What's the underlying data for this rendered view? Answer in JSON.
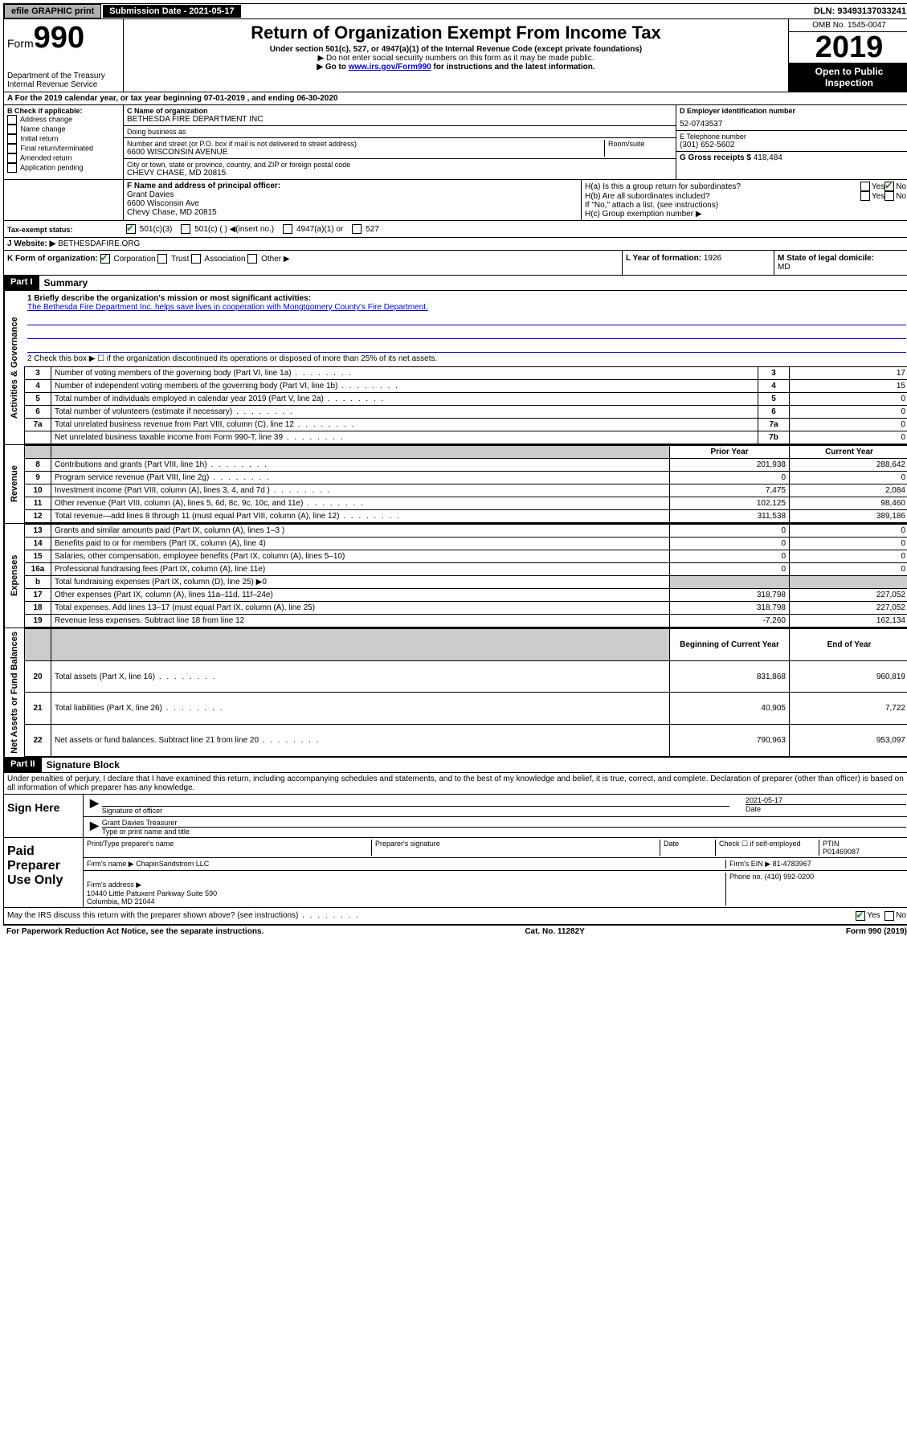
{
  "topbar": {
    "efile": "efile GRAPHIC print",
    "submission": "Submission Date - 2021-05-17",
    "dln": "DLN: 93493137033241"
  },
  "header": {
    "form_prefix": "Form",
    "form_number": "990",
    "dept": "Department of the Treasury\nInternal Revenue Service",
    "title": "Return of Organization Exempt From Income Tax",
    "subtitle": "Under section 501(c), 527, or 4947(a)(1) of the Internal Revenue Code (except private foundations)",
    "note1": "▶ Do not enter social security numbers on this form as it may be made public.",
    "note2_pre": "▶ Go to ",
    "note2_link": "www.irs.gov/Form990",
    "note2_post": " for instructions and the latest information.",
    "omb": "OMB No. 1545-0047",
    "year": "2019",
    "inspection": "Open to Public Inspection"
  },
  "period": "A  For the 2019 calendar year, or tax year beginning 07-01-2019    , and ending 06-30-2020",
  "boxB": {
    "title": "B Check if applicable:",
    "items": [
      "Address change",
      "Name change",
      "Initial return",
      "Final return/terminated",
      "Amended return",
      "Application pending"
    ]
  },
  "boxC": {
    "label_name": "C Name of organization",
    "name": "BETHESDA FIRE DEPARTMENT INC",
    "label_dba": "Doing business as",
    "label_addr": "Number and street (or P.O. box if mail is not delivered to street address)",
    "label_room": "Room/suite",
    "addr": "6600 WISCONSIN AVENUE",
    "label_city": "City or town, state or province, country, and ZIP or foreign postal code",
    "city": "CHEVY CHASE, MD  20815"
  },
  "boxD": {
    "label": "D Employer identification number",
    "value": "52-0743537"
  },
  "boxE": {
    "label": "E Telephone number",
    "value": "(301) 652-5602"
  },
  "boxG": {
    "label": "G Gross receipts $ ",
    "value": "418,484"
  },
  "boxF": {
    "label": "F  Name and address of principal officer:",
    "name": "Grant Davies",
    "addr1": "6600 Wisconsin Ave",
    "addr2": "Chevy Chase, MD  20815"
  },
  "boxH": {
    "a": "H(a)  Is this a group return for subordinates?",
    "b": "H(b)  Are all subordinates included?",
    "b_note": "If \"No,\" attach a list. (see instructions)",
    "c": "H(c)  Group exemption number ▶",
    "yes": "Yes",
    "no": "No"
  },
  "boxI": {
    "label": "Tax-exempt status:",
    "opts": [
      "501(c)(3)",
      "501(c) (  ) ◀(insert no.)",
      "4947(a)(1) or",
      "527"
    ]
  },
  "boxJ": {
    "label": "J   Website: ▶",
    "value": "BETHESDAFIRE.ORG"
  },
  "boxK": {
    "label": "K Form of organization:",
    "opts": [
      "Corporation",
      "Trust",
      "Association",
      "Other ▶"
    ]
  },
  "boxL": {
    "label": "L Year of formation: ",
    "value": "1926"
  },
  "boxM": {
    "label": "M State of legal domicile:",
    "value": "MD"
  },
  "part1": {
    "header": "Part I",
    "title": "Summary",
    "line1": "1  Briefly describe the organization's mission or most significant activities:",
    "mission": "The Bethesda Fire Department Inc. helps save lives in cooperation with Mongtgomery County's Fire Department.",
    "line2": "2   Check this box ▶ ☐  if the organization discontinued its operations or disposed of more than 25% of its net assets.",
    "vlabels": {
      "gov": "Activities & Governance",
      "rev": "Revenue",
      "exp": "Expenses",
      "net": "Net Assets or Fund Balances"
    },
    "gov_rows": [
      {
        "n": "3",
        "d": "Number of voting members of the governing body (Part VI, line 1a)",
        "box": "3",
        "v": "17"
      },
      {
        "n": "4",
        "d": "Number of independent voting members of the governing body (Part VI, line 1b)",
        "box": "4",
        "v": "15"
      },
      {
        "n": "5",
        "d": "Total number of individuals employed in calendar year 2019 (Part V, line 2a)",
        "box": "5",
        "v": "0"
      },
      {
        "n": "6",
        "d": "Total number of volunteers (estimate if necessary)",
        "box": "6",
        "v": "0"
      },
      {
        "n": "7a",
        "d": "Total unrelated business revenue from Part VIII, column (C), line 12",
        "box": "7a",
        "v": "0"
      },
      {
        "n": "",
        "d": "Net unrelated business taxable income from Form 990-T, line 39",
        "box": "7b",
        "v": "0"
      }
    ],
    "col_headers": {
      "prior": "Prior Year",
      "current": "Current Year",
      "boy": "Beginning of Current Year",
      "eoy": "End of Year"
    },
    "rev_rows": [
      {
        "n": "8",
        "d": "Contributions and grants (Part VIII, line 1h)",
        "p": "201,938",
        "c": "288,642"
      },
      {
        "n": "9",
        "d": "Program service revenue (Part VIII, line 2g)",
        "p": "0",
        "c": "0"
      },
      {
        "n": "10",
        "d": "Investment income (Part VIII, column (A), lines 3, 4, and 7d )",
        "p": "7,475",
        "c": "2,084"
      },
      {
        "n": "11",
        "d": "Other revenue (Part VIII, column (A), lines 5, 6d, 8c, 9c, 10c, and 11e)",
        "p": "102,125",
        "c": "98,460"
      },
      {
        "n": "12",
        "d": "Total revenue—add lines 8 through 11 (must equal Part VIII, column (A), line 12)",
        "p": "311,538",
        "c": "389,186"
      }
    ],
    "exp_rows": [
      {
        "n": "13",
        "d": "Grants and similar amounts paid (Part IX, column (A), lines 1–3 )",
        "p": "0",
        "c": "0"
      },
      {
        "n": "14",
        "d": "Benefits paid to or for members (Part IX, column (A), line 4)",
        "p": "0",
        "c": "0"
      },
      {
        "n": "15",
        "d": "Salaries, other compensation, employee benefits (Part IX, column (A), lines 5–10)",
        "p": "0",
        "c": "0"
      },
      {
        "n": "16a",
        "d": "Professional fundraising fees (Part IX, column (A), line 11e)",
        "p": "0",
        "c": "0"
      },
      {
        "n": "b",
        "d": "Total fundraising expenses (Part IX, column (D), line 25) ▶0",
        "p": "",
        "c": "",
        "grey": true
      },
      {
        "n": "17",
        "d": "Other expenses (Part IX, column (A), lines 11a–11d, 11f–24e)",
        "p": "318,798",
        "c": "227,052"
      },
      {
        "n": "18",
        "d": "Total expenses. Add lines 13–17 (must equal Part IX, column (A), line 25)",
        "p": "318,798",
        "c": "227,052"
      },
      {
        "n": "19",
        "d": "Revenue less expenses. Subtract line 18 from line 12",
        "p": "-7,260",
        "c": "162,134"
      }
    ],
    "net_rows": [
      {
        "n": "20",
        "d": "Total assets (Part X, line 16)",
        "p": "831,868",
        "c": "960,819"
      },
      {
        "n": "21",
        "d": "Total liabilities (Part X, line 26)",
        "p": "40,905",
        "c": "7,722"
      },
      {
        "n": "22",
        "d": "Net assets or fund balances. Subtract line 21 from line 20",
        "p": "790,963",
        "c": "953,097"
      }
    ]
  },
  "part2": {
    "header": "Part II",
    "title": "Signature Block",
    "perjury": "Under penalties of perjury, I declare that I have examined this return, including accompanying schedules and statements, and to the best of my knowledge and belief, it is true, correct, and complete. Declaration of preparer (other than officer) is based on all information of which preparer has any knowledge.",
    "sign_here": "Sign Here",
    "sig_officer": "Signature of officer",
    "sig_date": "2021-05-17",
    "date_label": "Date",
    "officer_name": "Grant Davies  Treasurer",
    "type_name": "Type or print name and title",
    "paid": "Paid Preparer Use Only",
    "prep_name_label": "Print/Type preparer's name",
    "prep_sig_label": "Preparer's signature",
    "check_self": "Check ☐ if self-employed",
    "ptin_label": "PTIN",
    "ptin": "P01469087",
    "firm_name_label": "Firm's name    ▶",
    "firm_name": "ChapinSandstrom LLC",
    "firm_ein_label": "Firm's EIN ▶",
    "firm_ein": "81-4783967",
    "firm_addr_label": "Firm's address ▶",
    "firm_addr": "10440 Little Patuxent Parkway Suite 590\nColumbia, MD  21044",
    "phone_label": "Phone no.",
    "phone": "(410) 992-0200",
    "discuss": "May the IRS discuss this return with the preparer shown above? (see instructions)",
    "yes": "Yes",
    "no": "No"
  },
  "footer": {
    "left": "For Paperwork Reduction Act Notice, see the separate instructions.",
    "center": "Cat. No. 11282Y",
    "right": "Form 990 (2019)"
  }
}
